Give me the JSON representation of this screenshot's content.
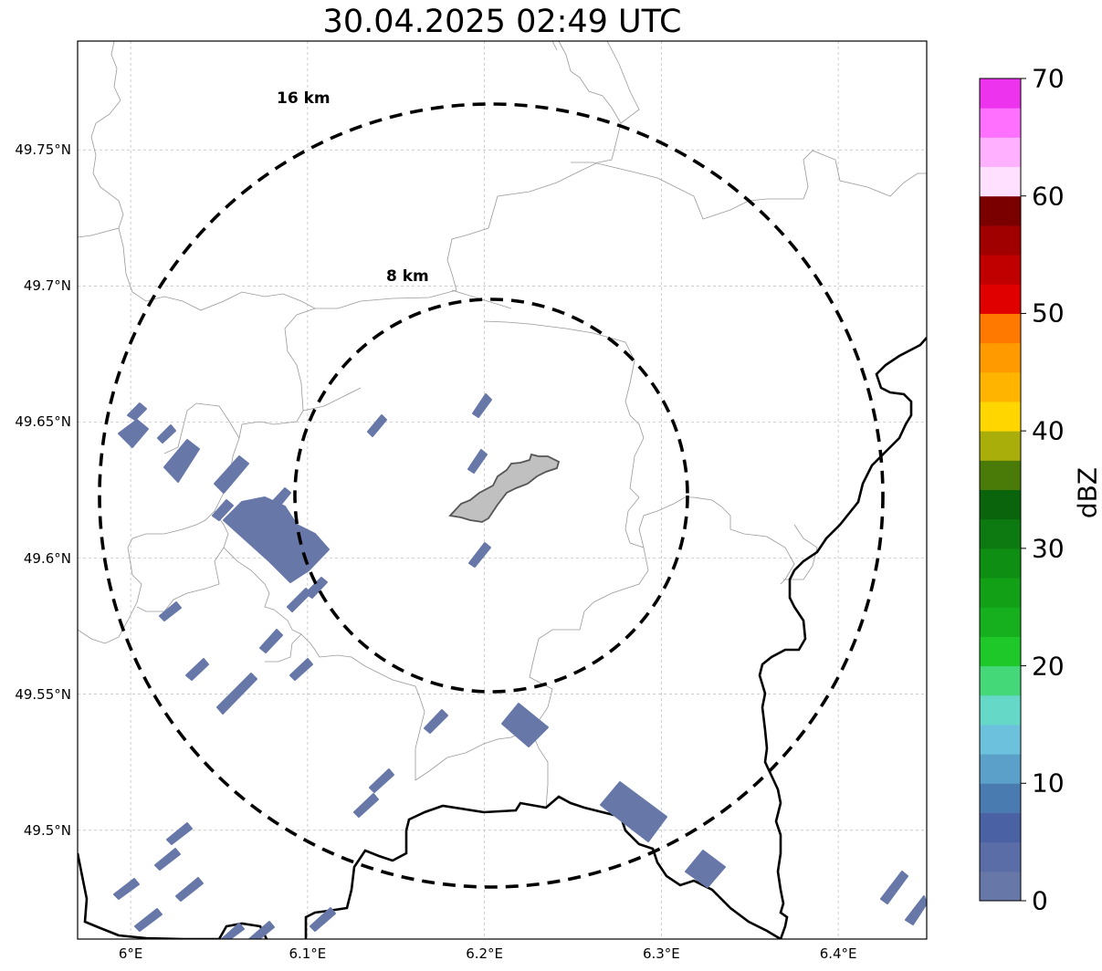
{
  "title": "30.04.2025 02:49 UTC",
  "map": {
    "lon_range": [
      5.97,
      6.45
    ],
    "lat_range": [
      49.46,
      49.79
    ],
    "gridlines": true,
    "lat_ticks": [
      {
        "value": 49.75,
        "label": "49.75°N"
      },
      {
        "value": 49.7,
        "label": "49.7°N"
      },
      {
        "value": 49.65,
        "label": "49.65°N"
      },
      {
        "value": 49.6,
        "label": "49.6°N"
      },
      {
        "value": 49.55,
        "label": "49.55°N"
      },
      {
        "value": 49.5,
        "label": "49.5°N"
      }
    ],
    "lon_ticks": [
      {
        "value": 6.0,
        "label": "6°E"
      },
      {
        "value": 6.1,
        "label": "6.1°E"
      },
      {
        "value": 6.2,
        "label": "6.2°E"
      },
      {
        "value": 6.3,
        "label": "6.3°E"
      },
      {
        "value": 6.4,
        "label": "6.4°E"
      }
    ],
    "range_rings": [
      {
        "label": "16 km",
        "radius_km": 16
      },
      {
        "label": "8 km",
        "radius_km": 8
      }
    ],
    "city_area_color": "#c0c0c0",
    "echo_color": "#6677a8",
    "boundary_color": "#000000",
    "commune_line_color": "#999999"
  },
  "colorbar": {
    "label": "dBZ",
    "ticks": [
      "0",
      "10",
      "20",
      "30",
      "40",
      "50",
      "60",
      "70"
    ],
    "colors": [
      "#6677a8",
      "#5a6da6",
      "#4a62a3",
      "#4a7bb0",
      "#5aa0c8",
      "#6cc2dc",
      "#66d8c8",
      "#44d878",
      "#1ec828",
      "#16b01e",
      "#12a016",
      "#0f8e14",
      "#0c7a10",
      "#0a640c",
      "#4a7a08",
      "#aaae0a",
      "#ffd600",
      "#ffb400",
      "#ff9a00",
      "#ff7800",
      "#e00000",
      "#c00000",
      "#a00000",
      "#7a0000",
      "#ffe0ff",
      "#ffb0ff",
      "#ff70ff",
      "#ee33ee"
    ]
  }
}
